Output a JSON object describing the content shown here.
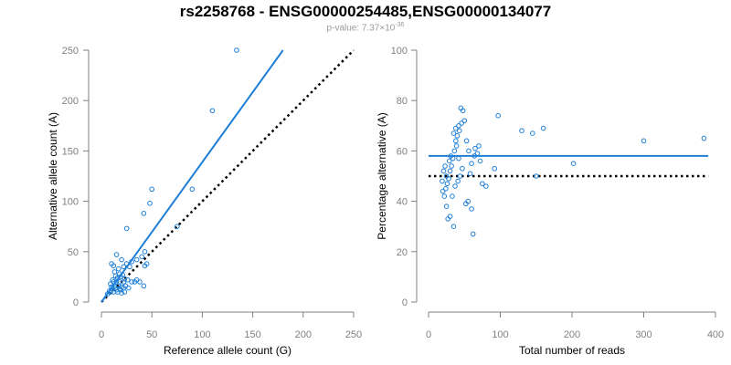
{
  "title": "rs2258768 - ENSG00000254485,ENSG00000134077",
  "subtitle": {
    "prefix": "p-value: 7.37×10",
    "exponent": "-36"
  },
  "colors": {
    "points": "#1f7fd8",
    "fit": "#1f7fd8",
    "reference": "#000000",
    "axis": "#808080"
  },
  "chart_data": [
    {
      "type": "scatter",
      "xlabel": "Reference allele count (G)",
      "ylabel": "Alternative allele count (A)",
      "xlim": [
        0,
        250
      ],
      "ylim": [
        0,
        250
      ],
      "xticks": [
        "0",
        "50",
        "100",
        "150",
        "200",
        "250"
      ],
      "yticks": [
        "0",
        "50",
        "100",
        "150",
        "200",
        "250"
      ],
      "fit_line": {
        "x": [
          0,
          180
        ],
        "y": [
          0,
          250
        ]
      },
      "reference_line": {
        "x": [
          0,
          250
        ],
        "y": [
          0,
          250
        ],
        "style": "dotted"
      },
      "points": [
        [
          134,
          250
        ],
        [
          110,
          190
        ],
        [
          50,
          112
        ],
        [
          90,
          112
        ],
        [
          48,
          98
        ],
        [
          42,
          88
        ],
        [
          75,
          75
        ],
        [
          25,
          73
        ],
        [
          43,
          50
        ],
        [
          40,
          45
        ],
        [
          35,
          42
        ],
        [
          30,
          40
        ],
        [
          25,
          38
        ],
        [
          28,
          35
        ],
        [
          45,
          38
        ],
        [
          43,
          36
        ],
        [
          15,
          47
        ],
        [
          20,
          42
        ],
        [
          10,
          38
        ],
        [
          12,
          36
        ],
        [
          22,
          35
        ],
        [
          17,
          33
        ],
        [
          13,
          30
        ],
        [
          18,
          28
        ],
        [
          21,
          27
        ],
        [
          14,
          26
        ],
        [
          19,
          25
        ],
        [
          16,
          24
        ],
        [
          23,
          23
        ],
        [
          11,
          22
        ],
        [
          12,
          20
        ],
        [
          15,
          20
        ],
        [
          18,
          20
        ],
        [
          22,
          20
        ],
        [
          26,
          22
        ],
        [
          33,
          20
        ],
        [
          35,
          22
        ],
        [
          30,
          20
        ],
        [
          38,
          20
        ],
        [
          42,
          16
        ],
        [
          9,
          18
        ],
        [
          13,
          16
        ],
        [
          17,
          16
        ],
        [
          20,
          15
        ],
        [
          24,
          16
        ],
        [
          27,
          14
        ],
        [
          11,
          13
        ],
        [
          15,
          12
        ],
        [
          19,
          12
        ],
        [
          8,
          11
        ],
        [
          12,
          10
        ],
        [
          16,
          10
        ],
        [
          20,
          9
        ],
        [
          23,
          10
        ],
        [
          10,
          15
        ],
        [
          14,
          14
        ],
        [
          18,
          13
        ],
        [
          22,
          14
        ],
        [
          6,
          8
        ],
        [
          9,
          10
        ]
      ]
    },
    {
      "type": "scatter",
      "xlabel": "Total number of reads",
      "ylabel": "Percentage alternative (A)",
      "xlim": [
        0,
        400
      ],
      "ylim": [
        0,
        100
      ],
      "xticks": [
        "0",
        "100",
        "200",
        "300",
        "400"
      ],
      "yticks": [
        "0",
        "20",
        "40",
        "60",
        "80",
        "100"
      ],
      "fit_line": {
        "x": [
          0,
          390
        ],
        "y": [
          58,
          58
        ]
      },
      "reference_line": {
        "x": [
          0,
          390
        ],
        "y": [
          50,
          50
        ],
        "style": "dotted"
      },
      "points": [
        [
          384,
          65
        ],
        [
          300,
          64
        ],
        [
          202,
          55
        ],
        [
          160,
          69
        ],
        [
          150,
          50
        ],
        [
          145,
          67
        ],
        [
          130,
          68
        ],
        [
          97,
          74
        ],
        [
          92,
          53
        ],
        [
          80,
          46
        ],
        [
          75,
          47
        ],
        [
          72,
          56
        ],
        [
          70,
          62
        ],
        [
          68,
          59
        ],
        [
          65,
          61
        ],
        [
          62,
          27
        ],
        [
          60,
          37
        ],
        [
          58,
          51
        ],
        [
          55,
          40
        ],
        [
          52,
          39
        ],
        [
          50,
          72
        ],
        [
          48,
          76
        ],
        [
          45,
          77
        ],
        [
          42,
          70
        ],
        [
          40,
          66
        ],
        [
          38,
          64
        ],
        [
          36,
          60
        ],
        [
          34,
          57
        ],
        [
          32,
          54
        ],
        [
          30,
          52
        ],
        [
          28,
          49
        ],
        [
          26,
          47
        ],
        [
          24,
          45
        ],
        [
          22,
          42
        ],
        [
          20,
          44
        ],
        [
          25,
          38
        ],
        [
          30,
          34
        ],
        [
          35,
          30
        ],
        [
          27,
          33
        ],
        [
          33,
          42
        ],
        [
          37,
          46
        ],
        [
          41,
          48
        ],
        [
          44,
          50
        ],
        [
          47,
          53
        ],
        [
          29,
          56
        ],
        [
          31,
          58
        ],
        [
          39,
          62
        ],
        [
          43,
          68
        ],
        [
          46,
          71
        ],
        [
          53,
          64
        ],
        [
          56,
          60
        ],
        [
          60,
          55
        ],
        [
          64,
          58
        ],
        [
          25,
          50
        ],
        [
          21,
          52
        ],
        [
          23,
          54
        ],
        [
          19,
          48
        ],
        [
          35,
          67
        ],
        [
          38,
          69
        ],
        [
          42,
          57
        ]
      ]
    }
  ]
}
